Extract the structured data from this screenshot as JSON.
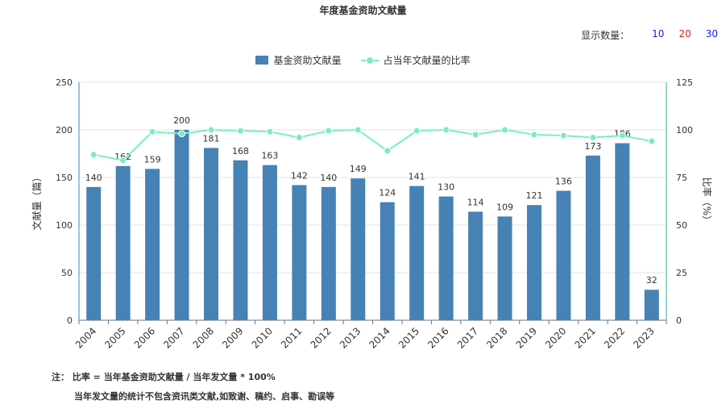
{
  "chart_data": {
    "type": "bar",
    "title": "年度基金资助文献量",
    "categories": [
      "2004",
      "2005",
      "2006",
      "2007",
      "2008",
      "2009",
      "2010",
      "2011",
      "2012",
      "2013",
      "2014",
      "2015",
      "2016",
      "2017",
      "2018",
      "2019",
      "2020",
      "2021",
      "2022",
      "2023"
    ],
    "series": [
      {
        "name": "基金资助文献量",
        "type": "bar",
        "axis": "left",
        "color": "#4682b4",
        "values": [
          140,
          162,
          159,
          200,
          181,
          168,
          163,
          142,
          140,
          149,
          124,
          141,
          130,
          114,
          109,
          121,
          136,
          173,
          186,
          32
        ]
      },
      {
        "name": "占当年文献量的比率",
        "type": "line",
        "axis": "right",
        "color": "#7beec0",
        "values": [
          87,
          84,
          99,
          98,
          100,
          99.5,
          99,
          96,
          99.5,
          100,
          89,
          99.5,
          100,
          97.5,
          100,
          97.5,
          97,
          96,
          97,
          94
        ]
      }
    ],
    "ylabel": "文献量（篇）",
    "y2label": "比率（%）",
    "ylim": [
      0,
      250
    ],
    "y2lim": [
      0,
      125
    ],
    "yticks": [
      0,
      50,
      100,
      150,
      200,
      250
    ],
    "y2ticks": [
      0,
      25,
      50,
      75,
      100,
      125
    ],
    "grid": true,
    "legend": "top-center"
  },
  "controls": {
    "display_label": "显示数量：",
    "options": [
      {
        "label": "10",
        "color": "#1a1aff"
      },
      {
        "label": "20",
        "color": "#e02020"
      },
      {
        "label": "30",
        "color": "#1a1aff"
      }
    ]
  },
  "notes": {
    "line1": "注：  比率 = 当年基金资助文献量 / 当年发文量 * 100%",
    "line2": "当年发文量的统计不包含资讯类文献,如致谢、稿约、启事、勘误等"
  }
}
